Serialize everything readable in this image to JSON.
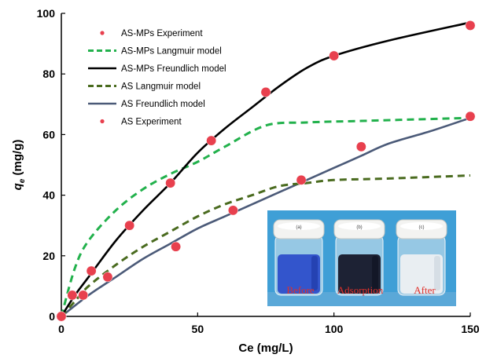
{
  "chart_data": {
    "type": "scatter",
    "xlabel": "Ce (mg/L)",
    "ylabel_main": "q",
    "ylabel_sub": "e",
    "ylabel_rest": " (mg/g)",
    "xlim": [
      0,
      150
    ],
    "ylim": [
      0,
      100
    ],
    "xticks": [
      "0",
      "50",
      "100",
      "150"
    ],
    "yticks": [
      "0",
      "20",
      "40",
      "60",
      "80",
      "100"
    ],
    "grid": false,
    "legend_position": "top-left",
    "series": [
      {
        "name": "AS-MPs Experiment",
        "kind": "points",
        "color": "#e8404e",
        "x": [
          0,
          4,
          11,
          25,
          40,
          55,
          75,
          100,
          150
        ],
        "y": [
          0,
          7,
          15,
          30,
          44,
          58,
          74,
          86,
          96
        ]
      },
      {
        "name": "AS-MPs Langmuir model",
        "kind": "dashed-line",
        "color": "#22b14c",
        "x": [
          0,
          5,
          10,
          20,
          30,
          40,
          50,
          60,
          75,
          90,
          110,
          130,
          150
        ],
        "y": [
          0,
          16,
          25,
          35,
          42,
          47,
          51,
          56,
          63,
          64,
          64.5,
          65,
          65.5
        ]
      },
      {
        "name": "AS-MPs Freundlich model",
        "kind": "solid-line",
        "color": "#000000",
        "x": [
          0,
          5,
          10,
          20,
          30,
          40,
          50,
          60,
          70,
          80,
          90,
          100,
          120,
          150
        ],
        "y": [
          0,
          7,
          13,
          25,
          35,
          44,
          54,
          62,
          69,
          76,
          82,
          86,
          91,
          97
        ]
      },
      {
        "name": "AS Langmuir model",
        "kind": "dashed-line",
        "color": "#4a6b1f",
        "x": [
          0,
          5,
          10,
          20,
          30,
          40,
          50,
          60,
          70,
          80,
          90,
          100,
          120,
          150
        ],
        "y": [
          0,
          5,
          10,
          17,
          23,
          28,
          33,
          37,
          40,
          43,
          44,
          45,
          45.5,
          46.5
        ]
      },
      {
        "name": "AS Freundlich model",
        "kind": "solid-line",
        "color": "#4b5a78",
        "x": [
          0,
          10,
          20,
          30,
          40,
          50,
          60,
          70,
          80,
          90,
          100,
          110,
          120,
          135,
          150
        ],
        "y": [
          0,
          7,
          13,
          19,
          24,
          29,
          33,
          37,
          41,
          45,
          49,
          53,
          57,
          61,
          65.5
        ]
      },
      {
        "name": "AS Experiment",
        "kind": "points",
        "color": "#e8404e",
        "x": [
          0,
          8,
          17,
          42,
          63,
          88,
          110,
          150
        ],
        "y": [
          0,
          7,
          13,
          23,
          35,
          45,
          56,
          66
        ]
      }
    ],
    "inset_photo": {
      "labels": [
        "Before",
        "Adsorption",
        "After"
      ],
      "vial_tags": [
        "(a)",
        "(b)",
        "(c)"
      ]
    }
  }
}
